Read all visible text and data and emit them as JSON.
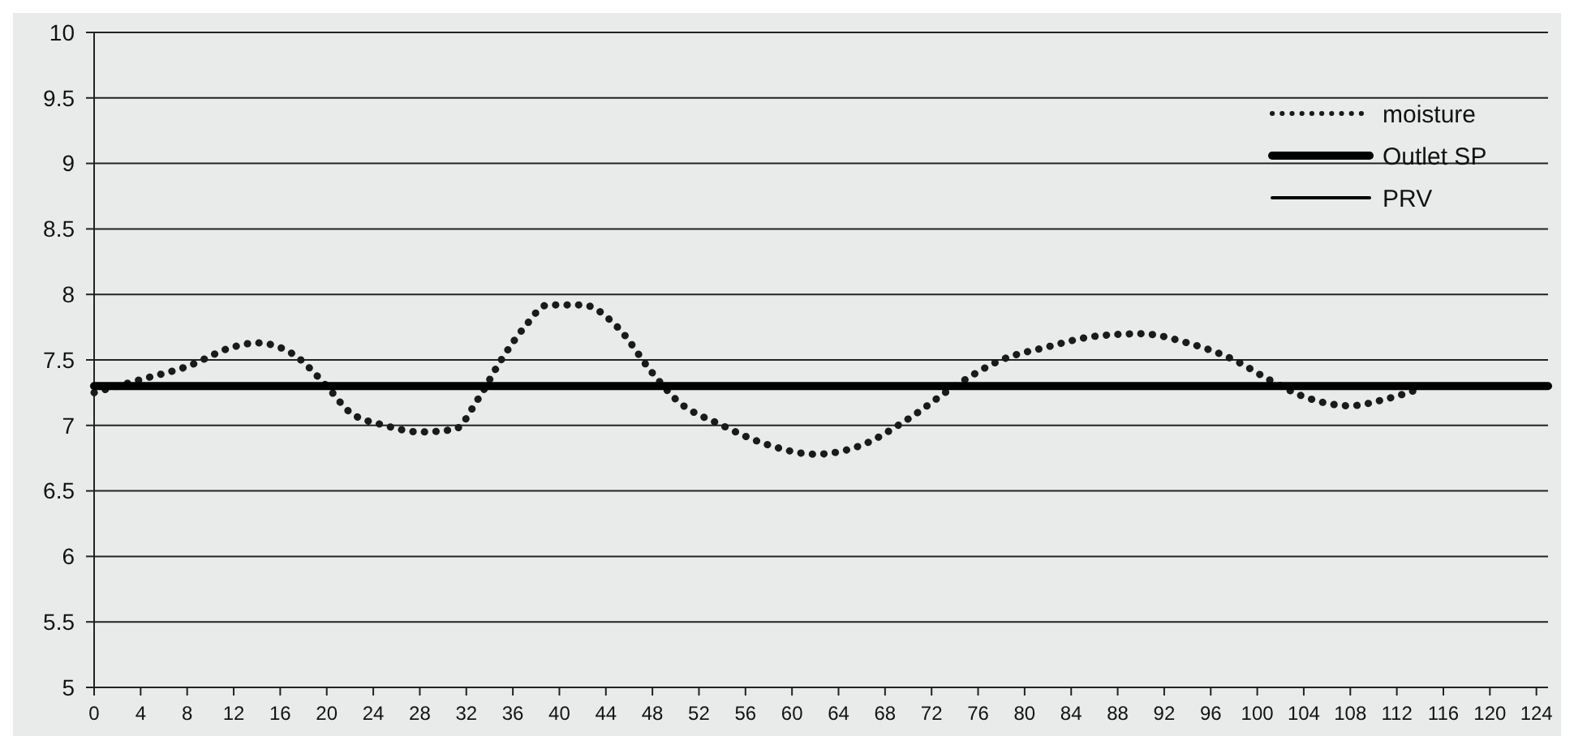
{
  "chart_data": {
    "type": "line",
    "xlim": [
      0,
      125
    ],
    "xticks": [
      0,
      4,
      8,
      12,
      16,
      20,
      24,
      28,
      32,
      36,
      40,
      44,
      48,
      52,
      56,
      60,
      64,
      68,
      72,
      76,
      80,
      84,
      88,
      92,
      96,
      100,
      104,
      108,
      112,
      116,
      120,
      124
    ],
    "ylim": [
      5,
      10
    ],
    "yticks": [
      5,
      5.5,
      6,
      6.5,
      7,
      7.5,
      8,
      8.5,
      9,
      9.5,
      10
    ],
    "grid": "y",
    "legend": "top right",
    "series": [
      {
        "name": "moisture",
        "color": "#1a1a1a",
        "line_style": "dotted",
        "x": [
          0,
          4,
          8,
          12,
          14,
          17,
          20,
          22,
          25,
          28,
          31,
          33,
          35,
          37,
          39,
          42,
          45,
          48,
          50,
          54,
          58,
          62,
          66,
          70,
          74,
          78,
          82,
          86,
          90,
          94,
          98,
          101,
          104,
          108,
          111,
          114
        ],
        "values": [
          7.25,
          7.35,
          7.45,
          7.6,
          7.63,
          7.55,
          7.3,
          7.1,
          7.0,
          6.95,
          6.97,
          7.2,
          7.5,
          7.75,
          7.92,
          7.92,
          7.75,
          7.4,
          7.2,
          7.0,
          6.85,
          6.78,
          6.85,
          7.05,
          7.3,
          7.5,
          7.6,
          7.68,
          7.7,
          7.63,
          7.5,
          7.35,
          7.22,
          7.15,
          7.2,
          7.28
        ]
      },
      {
        "name": "Outlet SP",
        "color": "#000000",
        "line_style": "solid",
        "x": [
          0,
          125
        ],
        "values": [
          7.3,
          7.3
        ]
      },
      {
        "name": "PRV",
        "color": "#000000",
        "line_style": "solid"
      }
    ]
  }
}
